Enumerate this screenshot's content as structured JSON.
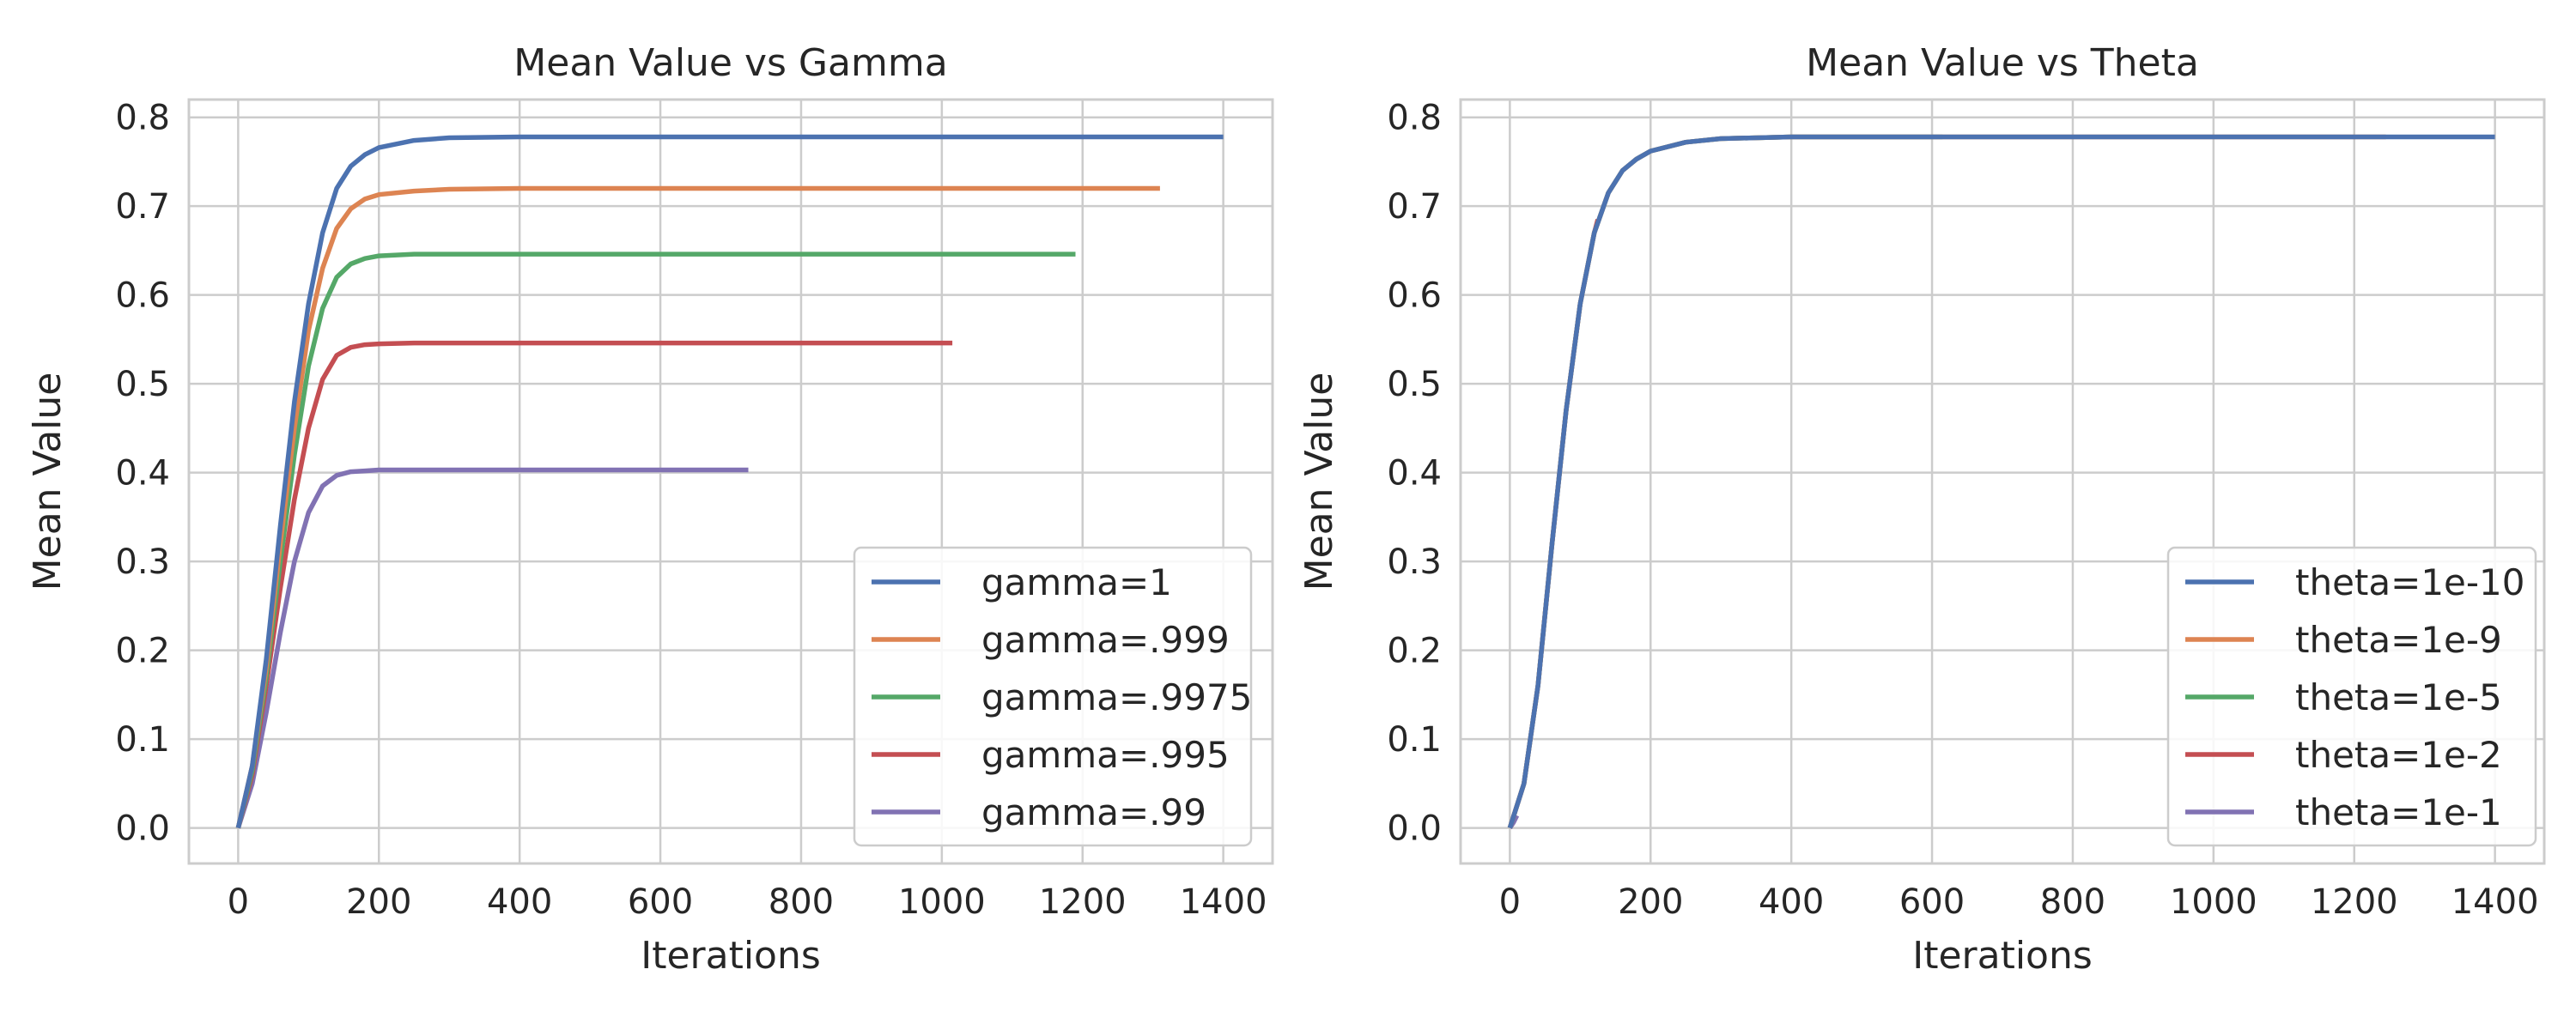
{
  "chart_data": [
    {
      "type": "line",
      "title": "Mean Value vs Gamma",
      "xlabel": "Iterations",
      "ylabel": "Mean Value",
      "xlim": [
        -70,
        1470
      ],
      "ylim": [
        -0.04,
        0.82
      ],
      "xticks": [
        0,
        200,
        400,
        600,
        800,
        1000,
        1200,
        1400
      ],
      "yticks": [
        0.0,
        0.1,
        0.2,
        0.3,
        0.4,
        0.5,
        0.6,
        0.7,
        0.8
      ],
      "grid": true,
      "legend_position": "lower right",
      "series": [
        {
          "name": "gamma=1",
          "color": "#4c72b0",
          "x": [
            0,
            20,
            40,
            60,
            80,
            100,
            120,
            140,
            160,
            180,
            200,
            250,
            300,
            400,
            600,
            800,
            1000,
            1200,
            1400
          ],
          "y": [
            0,
            0.07,
            0.19,
            0.34,
            0.48,
            0.59,
            0.67,
            0.72,
            0.745,
            0.758,
            0.766,
            0.774,
            0.777,
            0.778,
            0.778,
            0.778,
            0.778,
            0.778,
            0.778
          ]
        },
        {
          "name": "gamma=.999",
          "color": "#dd8452",
          "x": [
            0,
            20,
            40,
            60,
            80,
            100,
            120,
            140,
            160,
            180,
            200,
            250,
            300,
            400,
            600,
            800,
            1000,
            1200,
            1310
          ],
          "y": [
            0,
            0.07,
            0.18,
            0.32,
            0.45,
            0.56,
            0.63,
            0.675,
            0.697,
            0.708,
            0.713,
            0.717,
            0.719,
            0.72,
            0.72,
            0.72,
            0.72,
            0.72,
            0.72
          ]
        },
        {
          "name": "gamma=.9975",
          "color": "#55a868",
          "x": [
            0,
            20,
            40,
            60,
            80,
            100,
            120,
            140,
            160,
            180,
            200,
            250,
            300,
            400,
            600,
            800,
            1000,
            1190
          ],
          "y": [
            0,
            0.065,
            0.17,
            0.3,
            0.42,
            0.52,
            0.585,
            0.62,
            0.635,
            0.641,
            0.644,
            0.646,
            0.646,
            0.646,
            0.646,
            0.646,
            0.646,
            0.646
          ]
        },
        {
          "name": "gamma=.995",
          "color": "#c44e52",
          "x": [
            0,
            20,
            40,
            60,
            80,
            100,
            120,
            140,
            160,
            180,
            200,
            250,
            300,
            400,
            600,
            800,
            1015
          ],
          "y": [
            0,
            0.06,
            0.16,
            0.27,
            0.37,
            0.45,
            0.505,
            0.532,
            0.541,
            0.544,
            0.545,
            0.546,
            0.546,
            0.546,
            0.546,
            0.546,
            0.546
          ]
        },
        {
          "name": "gamma=.99",
          "color": "#8172b3",
          "x": [
            0,
            20,
            40,
            60,
            80,
            100,
            120,
            140,
            160,
            180,
            200,
            250,
            300,
            400,
            600,
            725
          ],
          "y": [
            0,
            0.05,
            0.13,
            0.22,
            0.3,
            0.355,
            0.385,
            0.397,
            0.401,
            0.402,
            0.403,
            0.403,
            0.403,
            0.403,
            0.403,
            0.403
          ]
        }
      ]
    },
    {
      "type": "line",
      "title": "Mean Value vs Theta",
      "xlabel": "Iterations",
      "ylabel": "Mean Value",
      "xlim": [
        -70,
        1470
      ],
      "ylim": [
        -0.04,
        0.82
      ],
      "xticks": [
        0,
        200,
        400,
        600,
        800,
        1000,
        1200,
        1400
      ],
      "yticks": [
        0.0,
        0.1,
        0.2,
        0.3,
        0.4,
        0.5,
        0.6,
        0.7,
        0.8
      ],
      "grid": true,
      "legend_position": "lower right",
      "series": [
        {
          "name": "theta=1e-10",
          "color": "#4c72b0",
          "x": [
            0,
            20,
            40,
            60,
            80,
            100,
            120,
            140,
            160,
            180,
            200,
            250,
            300,
            400,
            600,
            800,
            1000,
            1200,
            1400
          ],
          "y": [
            0,
            0.05,
            0.16,
            0.32,
            0.47,
            0.59,
            0.67,
            0.715,
            0.74,
            0.753,
            0.762,
            0.772,
            0.776,
            0.778,
            0.778,
            0.778,
            0.778,
            0.778,
            0.778
          ]
        },
        {
          "name": "theta=1e-9",
          "color": "#dd8452",
          "x": [
            0,
            20,
            40,
            60,
            80,
            100,
            120,
            140,
            160,
            180,
            200,
            250,
            300,
            400,
            600,
            800,
            1000,
            1245
          ],
          "y": [
            0,
            0.05,
            0.16,
            0.32,
            0.47,
            0.59,
            0.67,
            0.715,
            0.74,
            0.753,
            0.762,
            0.772,
            0.776,
            0.778,
            0.778,
            0.778,
            0.778,
            0.778
          ]
        },
        {
          "name": "theta=1e-5",
          "color": "#55a868",
          "x": [
            0,
            20,
            40,
            60,
            80,
            100,
            120,
            140,
            160,
            180,
            200,
            250,
            300,
            400,
            500,
            615
          ],
          "y": [
            0,
            0.05,
            0.16,
            0.32,
            0.47,
            0.59,
            0.67,
            0.715,
            0.74,
            0.753,
            0.762,
            0.772,
            0.776,
            0.778,
            0.778,
            0.778
          ]
        },
        {
          "name": "theta=1e-2",
          "color": "#c44e52",
          "x": [
            0,
            20,
            40,
            60,
            80,
            100,
            120,
            125
          ],
          "y": [
            0,
            0.05,
            0.16,
            0.32,
            0.47,
            0.59,
            0.67,
            0.685
          ]
        },
        {
          "name": "theta=1e-1",
          "color": "#8172b3",
          "x": [
            0,
            5,
            10
          ],
          "y": [
            0,
            0.006,
            0.014
          ]
        }
      ]
    }
  ]
}
